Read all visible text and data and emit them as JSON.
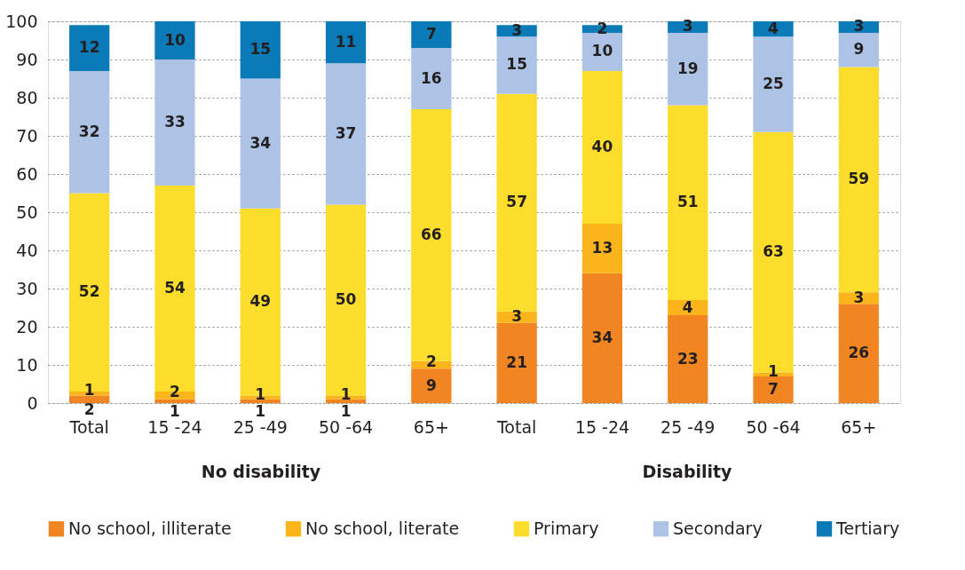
{
  "chart_data": {
    "type": "bar",
    "stacked": true,
    "categories": [
      "Total",
      "15 -24",
      "25 -49",
      "50 -64",
      "65+",
      "Total",
      "15 -24",
      "25 -49",
      "50 -64",
      "65+"
    ],
    "series": [
      {
        "name": "No school, illiterate",
        "color": "#f08521",
        "values": [
          2,
          1,
          1,
          1,
          9,
          21,
          34,
          23,
          7,
          26
        ]
      },
      {
        "name": "No school, literate",
        "color": "#fbb51b",
        "values": [
          1,
          2,
          1,
          1,
          2,
          3,
          13,
          4,
          1,
          3
        ]
      },
      {
        "name": "Primary",
        "color": "#fddd2c",
        "values": [
          52,
          54,
          49,
          50,
          66,
          57,
          40,
          51,
          63,
          59
        ]
      },
      {
        "name": "Secondary",
        "color": "#adc3e5",
        "values": [
          32,
          33,
          34,
          37,
          16,
          15,
          10,
          19,
          25,
          9
        ]
      },
      {
        "name": "Tertiary",
        "color": "#0a7bb6",
        "values": [
          12,
          10,
          15,
          11,
          7,
          3,
          2,
          3,
          4,
          3
        ]
      }
    ],
    "ylim": [
      0,
      100
    ],
    "yticks": [
      0,
      10,
      20,
      30,
      40,
      50,
      60,
      70,
      80,
      90,
      100
    ],
    "grid": "y",
    "legend": "bottom",
    "data_labels": true,
    "annotations": [
      "No disability",
      "Disability"
    ]
  }
}
